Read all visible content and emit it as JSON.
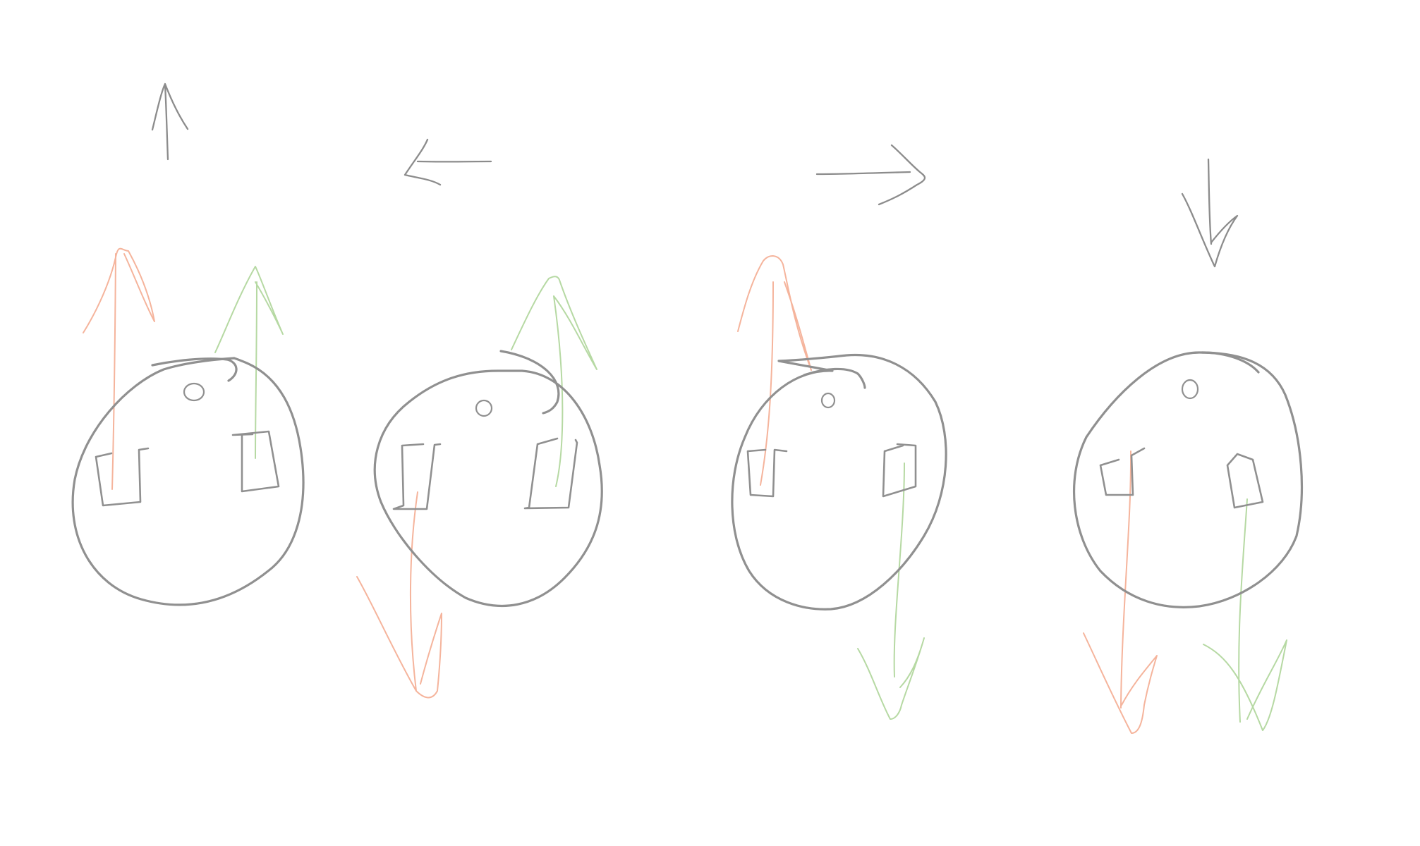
{
  "colors": {
    "background": "#ffffff",
    "outline": "#909090",
    "direction_arrow": "#8c8c8c",
    "left_wheel_force": "#f5b49c",
    "right_wheel_force": "#b6d9a3"
  },
  "robots": [
    {
      "motion": "forward",
      "direction_icon": "arrow-up-icon",
      "left_wheel_force": "forward",
      "right_wheel_force": "forward"
    },
    {
      "motion": "turn-left",
      "direction_icon": "arrow-left-icon",
      "left_wheel_force": "backward",
      "right_wheel_force": "forward"
    },
    {
      "motion": "turn-right",
      "direction_icon": "arrow-right-icon",
      "left_wheel_force": "forward",
      "right_wheel_force": "backward"
    },
    {
      "motion": "backward",
      "direction_icon": "arrow-down-icon",
      "left_wheel_force": "backward",
      "right_wheel_force": "backward"
    }
  ]
}
